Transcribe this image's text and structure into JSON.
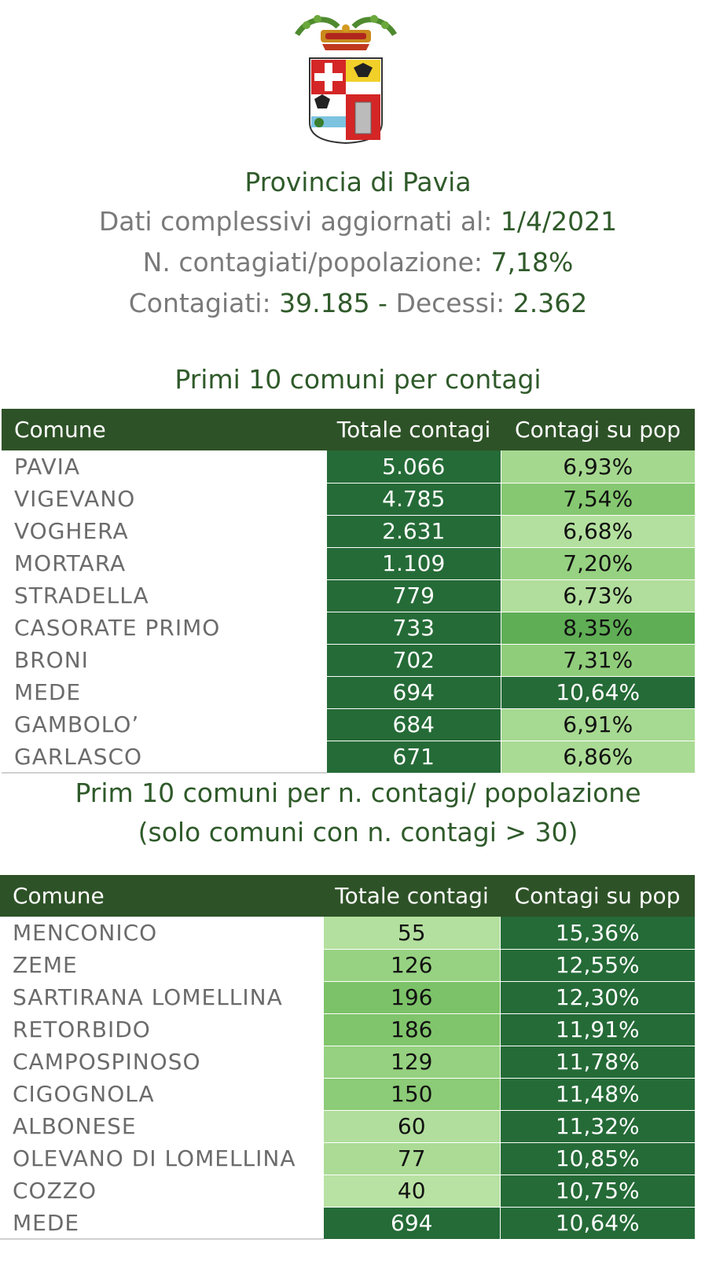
{
  "header": {
    "title": "Provincia di Pavia",
    "date_label": "Dati complessivi aggiornati al: ",
    "date_value": "1/4/2021",
    "ratio_label": "N. contagiati/popolazione: ",
    "ratio_value": "7,18%",
    "cases_label": "Contagiati:  ",
    "cases_value": "39.185",
    "sep": " - ",
    "deaths_label": "Decessi: ",
    "deaths_value": "2.362"
  },
  "colors": {
    "header_green": "#2e5227",
    "title_green": "#2f5a2a",
    "text_gray": "#6b6b6b"
  },
  "table1": {
    "title": "Primi 10 comuni per contagi",
    "columns": [
      "Comune",
      "Totale contagi",
      "Contagi su pop"
    ],
    "rows": [
      {
        "comune": "PAVIA",
        "totale": "5.066",
        "pop": "6,93%",
        "c_tot": "#256b37",
        "c_pop": "#a5d88f",
        "t_tot": "#ffffff",
        "t_pop": "#111111"
      },
      {
        "comune": "VIGEVANO",
        "totale": "4.785",
        "pop": "7,54%",
        "c_tot": "#256b37",
        "c_pop": "#86c871",
        "t_tot": "#ffffff",
        "t_pop": "#111111"
      },
      {
        "comune": "VOGHERA",
        "totale": "2.631",
        "pop": "6,68%",
        "c_tot": "#256b37",
        "c_pop": "#b4e09f",
        "t_tot": "#ffffff",
        "t_pop": "#111111"
      },
      {
        "comune": "MORTARA",
        "totale": "1.109",
        "pop": "7,20%",
        "c_tot": "#256b37",
        "c_pop": "#97d282",
        "t_tot": "#ffffff",
        "t_pop": "#111111"
      },
      {
        "comune": "STRADELLA",
        "totale": "779",
        "pop": "6,73%",
        "c_tot": "#256b37",
        "c_pop": "#b1de9c",
        "t_tot": "#ffffff",
        "t_pop": "#111111"
      },
      {
        "comune": "CASORATE PRIMO",
        "totale": "733",
        "pop": "8,35%",
        "c_tot": "#256b37",
        "c_pop": "#5fae55",
        "t_tot": "#ffffff",
        "t_pop": "#111111"
      },
      {
        "comune": "BRONI",
        "totale": "702",
        "pop": "7,31%",
        "c_tot": "#256b37",
        "c_pop": "#90cd7b",
        "t_tot": "#ffffff",
        "t_pop": "#111111"
      },
      {
        "comune": "MEDE",
        "totale": "694",
        "pop": "10,64%",
        "c_tot": "#256b37",
        "c_pop": "#256b37",
        "t_tot": "#ffffff",
        "t_pop": "#ffffff"
      },
      {
        "comune": "GAMBOLO’",
        "totale": "684",
        "pop": "6,91%",
        "c_tot": "#256b37",
        "c_pop": "#a6d991",
        "t_tot": "#ffffff",
        "t_pop": "#111111"
      },
      {
        "comune": "GARLASCO",
        "totale": "671",
        "pop": "6,86%",
        "c_tot": "#256b37",
        "c_pop": "#aadb94",
        "t_tot": "#ffffff",
        "t_pop": "#111111"
      }
    ]
  },
  "table2": {
    "title_line1": "Prim 10 comuni per n. contagi/ popolazione",
    "title_line2": "(solo comuni con n. contagi > 30)",
    "columns": [
      "Comune",
      "Totale contagi",
      "Contagi su pop"
    ],
    "rows": [
      {
        "comune": "MENCONICO",
        "totale": "55",
        "pop": "15,36%",
        "c_tot": "#b4e09f",
        "c_pop": "#256b37",
        "t_tot": "#111111",
        "t_pop": "#ffffff"
      },
      {
        "comune": "ZEME",
        "totale": "126",
        "pop": "12,55%",
        "c_tot": "#97d282",
        "c_pop": "#256b37",
        "t_tot": "#111111",
        "t_pop": "#ffffff"
      },
      {
        "comune": "SARTIRANA LOMELLINA",
        "totale": "196",
        "pop": "12,30%",
        "c_tot": "#7cc268",
        "c_pop": "#256b37",
        "t_tot": "#111111",
        "t_pop": "#ffffff"
      },
      {
        "comune": "RETORBIDO",
        "totale": "186",
        "pop": "11,91%",
        "c_tot": "#80c56c",
        "c_pop": "#256b37",
        "t_tot": "#111111",
        "t_pop": "#ffffff"
      },
      {
        "comune": "CAMPOSPINOSO",
        "totale": "129",
        "pop": "11,78%",
        "c_tot": "#95d180",
        "c_pop": "#256b37",
        "t_tot": "#111111",
        "t_pop": "#ffffff"
      },
      {
        "comune": "CIGOGNOLA",
        "totale": "150",
        "pop": "11,48%",
        "c_tot": "#8ccb77",
        "c_pop": "#256b37",
        "t_tot": "#111111",
        "t_pop": "#ffffff"
      },
      {
        "comune": "ALBONESE",
        "totale": "60",
        "pop": "11,32%",
        "c_tot": "#b1de9c",
        "c_pop": "#256b37",
        "t_tot": "#111111",
        "t_pop": "#ffffff"
      },
      {
        "comune": "OLEVANO DI LOMELLINA",
        "totale": "77",
        "pop": "10,85%",
        "c_tot": "#abdb95",
        "c_pop": "#256b37",
        "t_tot": "#111111",
        "t_pop": "#ffffff"
      },
      {
        "comune": "COZZO",
        "totale": "40",
        "pop": "10,75%",
        "c_tot": "#b8e2a3",
        "c_pop": "#256b37",
        "t_tot": "#111111",
        "t_pop": "#ffffff"
      },
      {
        "comune": "MEDE",
        "totale": "694",
        "pop": "10,64%",
        "c_tot": "#256b37",
        "c_pop": "#256b37",
        "t_tot": "#ffffff",
        "t_pop": "#ffffff"
      }
    ]
  }
}
